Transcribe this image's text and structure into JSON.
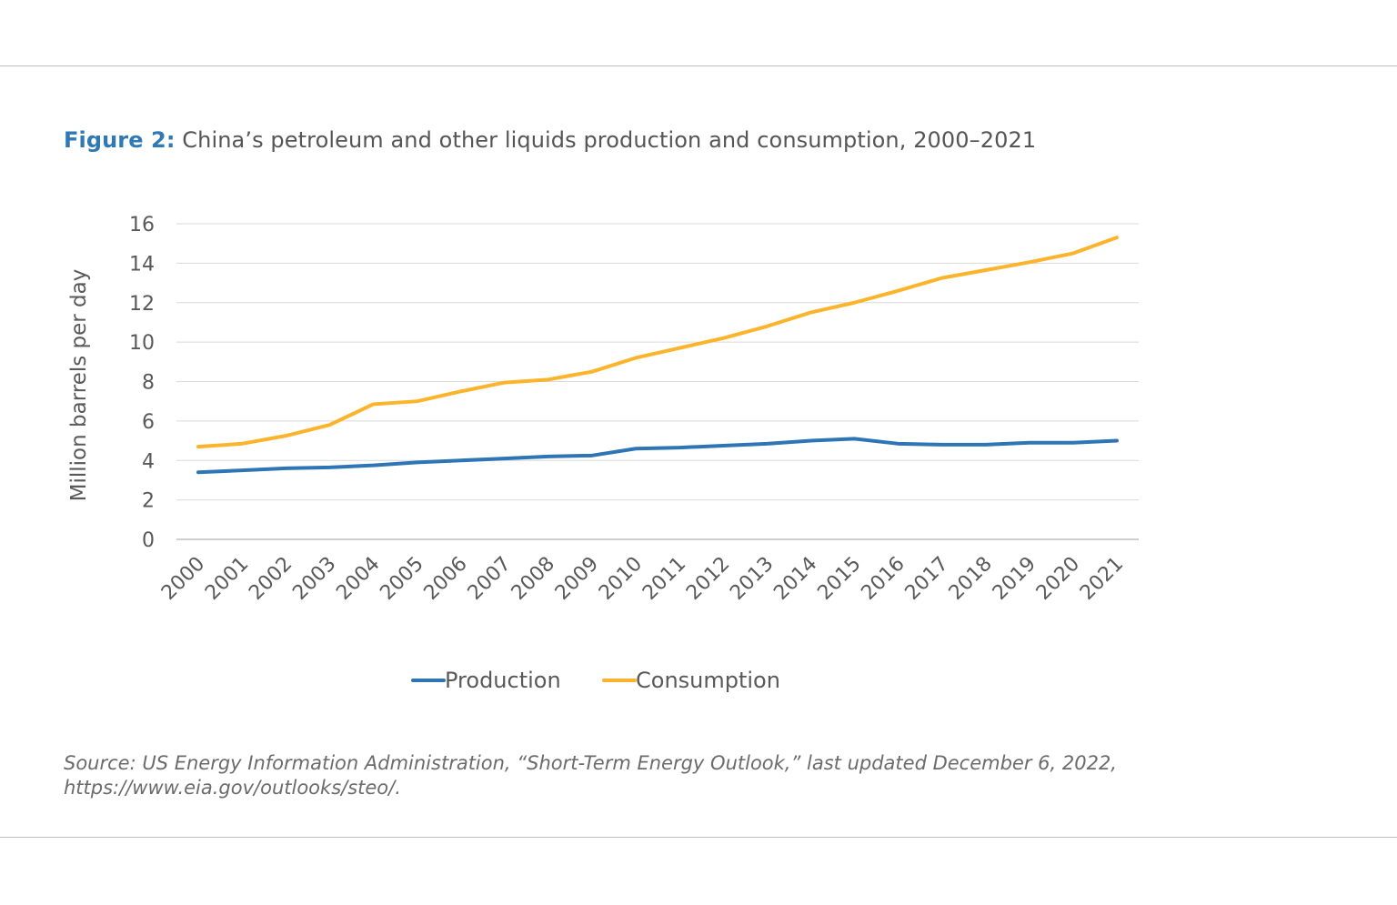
{
  "figure": {
    "label": "Figure 2:",
    "title": "China’s petroleum and other liquids production and consumption, 2000–2021"
  },
  "source": {
    "line1": "Source: US Energy Information Administration, “Short-Term Energy Outlook,” last updated December 6, 2022,",
    "line2": "https://www.eia.gov/outlooks/steo/."
  },
  "colors": {
    "production": "#2e75b6",
    "consumption": "#fbb42b",
    "grid": "#d9d9d9",
    "axis": "#bfbfbf",
    "label_accent": "#2f7ab5"
  },
  "chart_data": {
    "type": "line",
    "title": "China’s petroleum and other liquids production and consumption, 2000–2021",
    "xlabel": "",
    "ylabel": "Million barrels per day",
    "ylim": [
      0,
      16
    ],
    "yticks": [
      0,
      2,
      4,
      6,
      8,
      10,
      12,
      14,
      16
    ],
    "grid": true,
    "legend_position": "bottom-center",
    "categories": [
      "2000",
      "2001",
      "2002",
      "2003",
      "2004",
      "2005",
      "2006",
      "2007",
      "2008",
      "2009",
      "2010",
      "2011",
      "2012",
      "2013",
      "2014",
      "2015",
      "2016",
      "2017",
      "2018",
      "2019",
      "2020",
      "2021"
    ],
    "series": [
      {
        "name": "Production",
        "color": "#2e75b6",
        "values": [
          3.4,
          3.5,
          3.6,
          3.65,
          3.75,
          3.9,
          4.0,
          4.1,
          4.2,
          4.25,
          4.6,
          4.65,
          4.75,
          4.85,
          5.0,
          5.1,
          4.85,
          4.8,
          4.8,
          4.9,
          4.9,
          5.0
        ]
      },
      {
        "name": "Consumption",
        "color": "#fbb42b",
        "values": [
          4.7,
          4.85,
          5.25,
          5.8,
          6.85,
          7.0,
          7.5,
          7.95,
          8.1,
          8.5,
          9.2,
          9.7,
          10.2,
          10.8,
          11.5,
          12.0,
          12.6,
          13.25,
          13.65,
          14.05,
          14.5,
          15.3
        ]
      }
    ]
  }
}
